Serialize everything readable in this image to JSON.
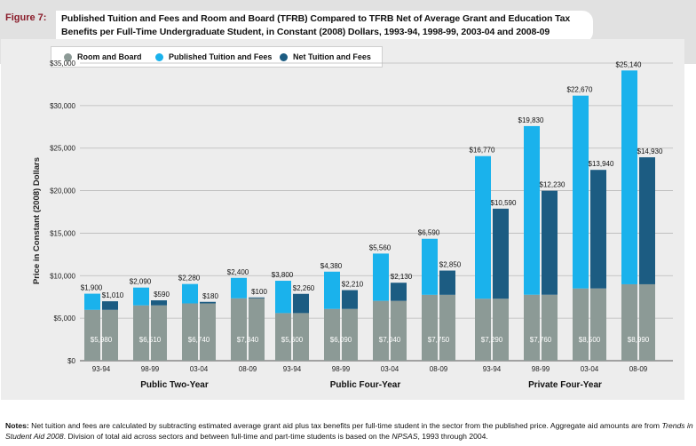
{
  "figure": {
    "label": "Figure 7:",
    "title": "Published Tuition and Fees and Room and Board (TFRB) Compared to TFRB Net of Average Grant and Education Tax Benefits per Full-Time Undergraduate Student, in Constant (2008) Dollars, 1993-94, 1998-99, 2003-04 and 2008-09"
  },
  "notes": {
    "label": "Notes:",
    "text_1": " Net tuition and fees are calculated by subtracting estimated average grant aid plus tax benefits per full-time student in the sector from the published price. Aggregate aid amounts are from ",
    "source_1": "Trends in Student Aid 2008",
    "text_2": ". Division of total aid across sectors and between full-time and part-time students is based on the ",
    "source_2": "NPSAS",
    "text_3": ", 1993 through 2004."
  },
  "colors": {
    "room_board": "#8c9a96",
    "published": "#1ab2ec",
    "net": "#1c5c82"
  },
  "chart_data": {
    "type": "bar",
    "ylabel": "Price in Constant (2008) Dollars",
    "ylim": [
      0,
      35000
    ],
    "yticks": [
      "$0",
      "$5,000",
      "$10,000",
      "$15,000",
      "$20,000",
      "$25,000",
      "$30,000",
      "$35,000"
    ],
    "grid": true,
    "legend_position": "top",
    "legend": [
      "Room and Board",
      "Published Tuition and Fees",
      "Net Tuition and Fees"
    ],
    "groups": [
      {
        "name": "Public Two-Year",
        "categories": [
          "93-94",
          "98-99",
          "03-04",
          "08-09"
        ],
        "room_board": [
          5980,
          6510,
          6740,
          7340
        ],
        "published_tuition": [
          1900,
          2090,
          2280,
          2400
        ],
        "net_tuition": [
          1010,
          590,
          180,
          100
        ],
        "room_board_labels": [
          "$5,980",
          "$6,510",
          "$6,740",
          "$7,340"
        ],
        "published_labels": [
          "$1,900",
          "$2,090",
          "$2,280",
          "$2,400"
        ],
        "net_labels": [
          "$1,010",
          "$590",
          "$180",
          "$100"
        ]
      },
      {
        "name": "Public Four-Year",
        "categories": [
          "93-94",
          "98-99",
          "03-04",
          "08-09"
        ],
        "room_board": [
          5600,
          6090,
          7040,
          7750
        ],
        "published_tuition": [
          3800,
          4380,
          5560,
          6590
        ],
        "net_tuition": [
          2260,
          2210,
          2130,
          2850
        ],
        "room_board_labels": [
          "$5,600",
          "$6,090",
          "$7,040",
          "$7,750"
        ],
        "published_labels": [
          "$3,800",
          "$4,380",
          "$5,560",
          "$6,590"
        ],
        "net_labels": [
          "$2,260",
          "$2,210",
          "$2,130",
          "$2,850"
        ]
      },
      {
        "name": "Private Four-Year",
        "categories": [
          "93-94",
          "98-99",
          "03-04",
          "08-09"
        ],
        "room_board": [
          7290,
          7760,
          8500,
          8990
        ],
        "published_tuition": [
          16770,
          19830,
          22670,
          25140
        ],
        "net_tuition": [
          10590,
          12230,
          13940,
          14930
        ],
        "room_board_labels": [
          "$7,290",
          "$7,760",
          "$8,500",
          "$8,990"
        ],
        "published_labels": [
          "$16,770",
          "$19,830",
          "$22,670",
          "$25,140"
        ],
        "net_labels": [
          "$10,590",
          "$12,230",
          "$13,940",
          "$14,930"
        ]
      }
    ]
  }
}
